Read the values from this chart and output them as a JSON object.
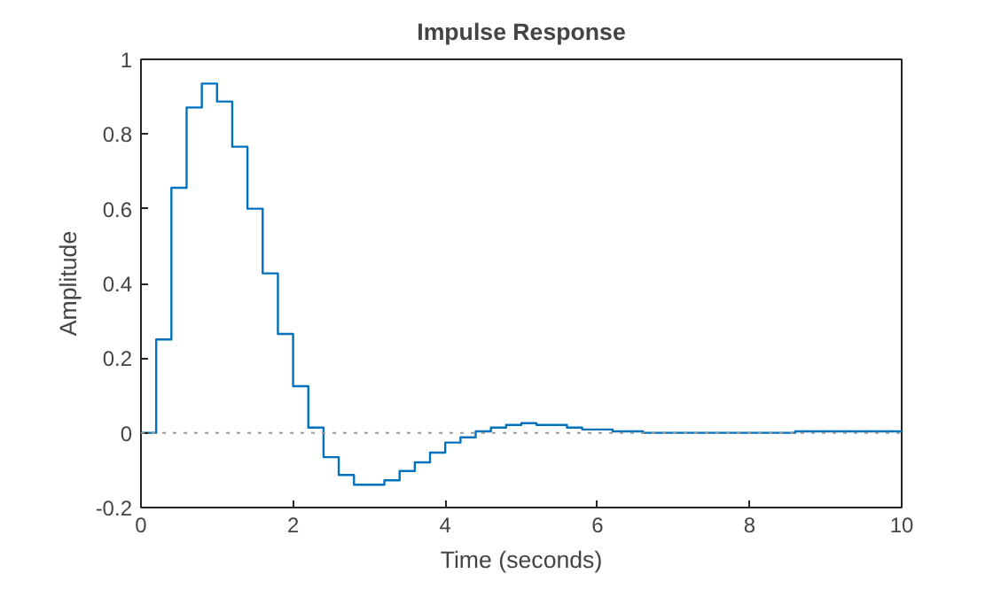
{
  "chart_data": {
    "type": "step",
    "title": "Impulse Response",
    "xlabel": "Time (seconds)",
    "ylabel": "Amplitude",
    "x": [
      0,
      0.2,
      0.4,
      0.6,
      0.8,
      1.0,
      1.2,
      1.4,
      1.6,
      1.8,
      2.0,
      2.2,
      2.4,
      2.6,
      2.8,
      3.2,
      3.4,
      3.6,
      3.8,
      4.0,
      4.2,
      4.4,
      4.6,
      4.8,
      5.0,
      5.2,
      5.6,
      5.8,
      6.2,
      6.6,
      8.6,
      10
    ],
    "series": [
      {
        "color": "#0072bd",
        "values": [
          0,
          0.25,
          0.656,
          0.871,
          0.935,
          0.887,
          0.766,
          0.6,
          0.427,
          0.265,
          0.125,
          0.014,
          -0.065,
          -0.113,
          -0.139,
          -0.127,
          -0.102,
          -0.079,
          -0.053,
          -0.026,
          -0.012,
          0.004,
          0.014,
          0.021,
          0.026,
          0.021,
          0.014,
          0.009,
          0.004,
          0,
          0.004,
          0.004
        ]
      }
    ],
    "xlim": [
      0,
      10
    ],
    "ylim": [
      -0.2,
      1
    ],
    "xticks": [
      0,
      2,
      4,
      6,
      8,
      10
    ],
    "yticks": [
      -0.2,
      0,
      0.2,
      0.4,
      0.6,
      0.8,
      1
    ],
    "ref_lines": [
      {
        "axis": "y",
        "value": 0,
        "color": "#999999",
        "line_style": "dotted"
      }
    ],
    "grid": false
  }
}
